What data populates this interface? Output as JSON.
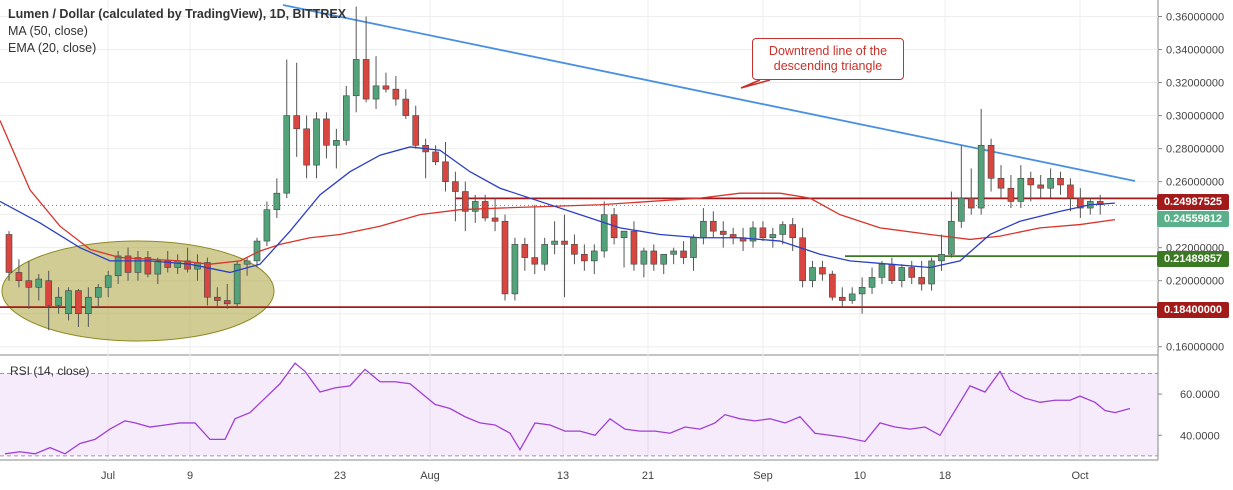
{
  "header": {
    "title": "Lumen / Dollar (calculated by TradingView), 1D, BITTREX",
    "ma_label": "MA (50, close)",
    "ema_label": "EMA (20, close)"
  },
  "rsi_label": "RSI (14, close)",
  "annotation": "Downtrend line of the descending triangle",
  "colors": {
    "up": "#53a37a",
    "down": "#d8463f",
    "ma": "#d9342b",
    "ema": "#2b3fc4",
    "trend": "#4a90e2",
    "support_green": "#3b7a23",
    "support_red": "#a31a1a",
    "rsi": "#a13fd6"
  },
  "price_tags": {
    "resistance": "0.24987525",
    "last": "0.24559812",
    "support_mid": "0.21489857",
    "support_low": "0.18400000"
  },
  "chart_data": {
    "type": "candlestick",
    "y_axis": [
      "0.36000000",
      "0.34000000",
      "0.32000000",
      "0.30000000",
      "0.28000000",
      "0.26000000",
      "0.24000000",
      "0.22000000",
      "0.20000000",
      "0.18000000",
      "0.16000000"
    ],
    "x_axis": [
      "Jul",
      "9",
      "23",
      "Aug",
      "13",
      "21",
      "Sep",
      "10",
      "18",
      "Oct"
    ],
    "rsi_axis": [
      "60.0000",
      "40.0000"
    ],
    "ylim": [
      0.155,
      0.37
    ],
    "rsi_ylim": [
      28,
      78
    ],
    "horizontal_levels": [
      0.24987525,
      0.21489857,
      0.184
    ],
    "candles": [
      [
        0.228,
        0.23,
        0.2,
        0.205
      ],
      [
        0.205,
        0.213,
        0.196,
        0.2
      ],
      [
        0.2,
        0.212,
        0.183,
        0.196
      ],
      [
        0.196,
        0.204,
        0.188,
        0.201
      ],
      [
        0.2,
        0.206,
        0.17,
        0.185
      ],
      [
        0.185,
        0.196,
        0.18,
        0.19
      ],
      [
        0.18,
        0.196,
        0.176,
        0.194
      ],
      [
        0.194,
        0.195,
        0.172,
        0.18
      ],
      [
        0.18,
        0.196,
        0.172,
        0.19
      ],
      [
        0.19,
        0.198,
        0.184,
        0.196
      ],
      [
        0.196,
        0.206,
        0.19,
        0.203
      ],
      [
        0.203,
        0.218,
        0.198,
        0.215
      ],
      [
        0.215,
        0.22,
        0.2,
        0.205
      ],
      [
        0.205,
        0.218,
        0.2,
        0.214
      ],
      [
        0.214,
        0.218,
        0.202,
        0.204
      ],
      [
        0.204,
        0.214,
        0.198,
        0.212
      ],
      [
        0.212,
        0.218,
        0.205,
        0.208
      ],
      [
        0.208,
        0.216,
        0.204,
        0.212
      ],
      [
        0.212,
        0.22,
        0.205,
        0.207
      ],
      [
        0.207,
        0.216,
        0.2,
        0.211
      ],
      [
        0.211,
        0.214,
        0.185,
        0.19
      ],
      [
        0.19,
        0.196,
        0.184,
        0.188
      ],
      [
        0.188,
        0.198,
        0.183,
        0.186
      ],
      [
        0.186,
        0.212,
        0.184,
        0.21
      ],
      [
        0.21,
        0.214,
        0.203,
        0.212
      ],
      [
        0.212,
        0.226,
        0.208,
        0.224
      ],
      [
        0.224,
        0.248,
        0.221,
        0.243
      ],
      [
        0.243,
        0.262,
        0.238,
        0.253
      ],
      [
        0.253,
        0.334,
        0.25,
        0.3
      ],
      [
        0.3,
        0.332,
        0.275,
        0.292
      ],
      [
        0.292,
        0.3,
        0.262,
        0.27
      ],
      [
        0.27,
        0.302,
        0.262,
        0.298
      ],
      [
        0.298,
        0.302,
        0.274,
        0.282
      ],
      [
        0.282,
        0.292,
        0.268,
        0.285
      ],
      [
        0.285,
        0.318,
        0.282,
        0.312
      ],
      [
        0.312,
        0.366,
        0.302,
        0.334
      ],
      [
        0.334,
        0.36,
        0.308,
        0.31
      ],
      [
        0.31,
        0.336,
        0.304,
        0.318
      ],
      [
        0.318,
        0.326,
        0.314,
        0.316
      ],
      [
        0.316,
        0.324,
        0.306,
        0.31
      ],
      [
        0.31,
        0.316,
        0.298,
        0.3
      ],
      [
        0.3,
        0.306,
        0.28,
        0.282
      ],
      [
        0.282,
        0.286,
        0.262,
        0.278
      ],
      [
        0.278,
        0.282,
        0.27,
        0.272
      ],
      [
        0.272,
        0.284,
        0.254,
        0.26
      ],
      [
        0.26,
        0.266,
        0.236,
        0.254
      ],
      [
        0.254,
        0.26,
        0.23,
        0.242
      ],
      [
        0.242,
        0.252,
        0.235,
        0.248
      ],
      [
        0.248,
        0.252,
        0.236,
        0.238
      ],
      [
        0.238,
        0.25,
        0.23,
        0.236
      ],
      [
        0.236,
        0.24,
        0.188,
        0.192
      ],
      [
        0.192,
        0.226,
        0.188,
        0.222
      ],
      [
        0.222,
        0.226,
        0.206,
        0.214
      ],
      [
        0.214,
        0.246,
        0.204,
        0.21
      ],
      [
        0.21,
        0.226,
        0.206,
        0.222
      ],
      [
        0.222,
        0.236,
        0.216,
        0.224
      ],
      [
        0.224,
        0.24,
        0.19,
        0.222
      ],
      [
        0.222,
        0.228,
        0.21,
        0.216
      ],
      [
        0.216,
        0.222,
        0.206,
        0.212
      ],
      [
        0.212,
        0.222,
        0.204,
        0.218
      ],
      [
        0.218,
        0.248,
        0.214,
        0.24
      ],
      [
        0.24,
        0.244,
        0.222,
        0.226
      ],
      [
        0.226,
        0.23,
        0.208,
        0.23
      ],
      [
        0.23,
        0.236,
        0.206,
        0.21
      ],
      [
        0.21,
        0.22,
        0.202,
        0.218
      ],
      [
        0.218,
        0.222,
        0.206,
        0.21
      ],
      [
        0.21,
        0.216,
        0.204,
        0.216
      ],
      [
        0.216,
        0.22,
        0.21,
        0.218
      ],
      [
        0.218,
        0.224,
        0.21,
        0.214
      ],
      [
        0.214,
        0.228,
        0.206,
        0.226
      ],
      [
        0.226,
        0.244,
        0.222,
        0.236
      ],
      [
        0.236,
        0.242,
        0.226,
        0.23
      ],
      [
        0.23,
        0.236,
        0.22,
        0.228
      ],
      [
        0.228,
        0.232,
        0.222,
        0.226
      ],
      [
        0.226,
        0.232,
        0.218,
        0.224
      ],
      [
        0.224,
        0.236,
        0.22,
        0.232
      ],
      [
        0.232,
        0.236,
        0.224,
        0.226
      ],
      [
        0.226,
        0.232,
        0.22,
        0.228
      ],
      [
        0.228,
        0.236,
        0.222,
        0.234
      ],
      [
        0.234,
        0.238,
        0.218,
        0.226
      ],
      [
        0.226,
        0.232,
        0.196,
        0.2
      ],
      [
        0.2,
        0.212,
        0.196,
        0.208
      ],
      [
        0.208,
        0.212,
        0.2,
        0.204
      ],
      [
        0.204,
        0.206,
        0.188,
        0.19
      ],
      [
        0.19,
        0.196,
        0.184,
        0.188
      ],
      [
        0.188,
        0.196,
        0.186,
        0.192
      ],
      [
        0.192,
        0.202,
        0.18,
        0.196
      ],
      [
        0.196,
        0.208,
        0.192,
        0.202
      ],
      [
        0.202,
        0.212,
        0.198,
        0.21
      ],
      [
        0.21,
        0.214,
        0.198,
        0.2
      ],
      [
        0.2,
        0.21,
        0.196,
        0.208
      ],
      [
        0.208,
        0.212,
        0.198,
        0.202
      ],
      [
        0.202,
        0.212,
        0.194,
        0.198
      ],
      [
        0.198,
        0.214,
        0.194,
        0.212
      ],
      [
        0.212,
        0.228,
        0.206,
        0.216
      ],
      [
        0.216,
        0.254,
        0.214,
        0.236
      ],
      [
        0.236,
        0.282,
        0.232,
        0.25
      ],
      [
        0.25,
        0.268,
        0.24,
        0.244
      ],
      [
        0.244,
        0.304,
        0.24,
        0.282
      ],
      [
        0.282,
        0.286,
        0.254,
        0.262
      ],
      [
        0.262,
        0.27,
        0.25,
        0.256
      ],
      [
        0.256,
        0.264,
        0.244,
        0.248
      ],
      [
        0.248,
        0.27,
        0.244,
        0.262
      ],
      [
        0.262,
        0.266,
        0.248,
        0.258
      ],
      [
        0.258,
        0.264,
        0.25,
        0.256
      ],
      [
        0.256,
        0.268,
        0.25,
        0.262
      ],
      [
        0.262,
        0.266,
        0.252,
        0.258
      ],
      [
        0.258,
        0.262,
        0.242,
        0.25
      ],
      [
        0.25,
        0.256,
        0.238,
        0.244
      ],
      [
        0.244,
        0.25,
        0.24,
        0.248
      ],
      [
        0.248,
        0.252,
        0.24,
        0.246
      ]
    ],
    "ma50": [
      [
        0,
        0.297
      ],
      [
        30,
        0.255
      ],
      [
        60,
        0.233
      ],
      [
        90,
        0.219
      ],
      [
        120,
        0.214
      ],
      [
        150,
        0.213
      ],
      [
        180,
        0.212
      ],
      [
        210,
        0.21
      ],
      [
        240,
        0.212
      ],
      [
        260,
        0.218
      ],
      [
        280,
        0.222
      ],
      [
        310,
        0.226
      ],
      [
        340,
        0.228
      ],
      [
        380,
        0.233
      ],
      [
        420,
        0.24
      ],
      [
        460,
        0.243
      ],
      [
        500,
        0.244
      ],
      [
        550,
        0.245
      ],
      [
        600,
        0.246
      ],
      [
        650,
        0.248
      ],
      [
        700,
        0.25
      ],
      [
        740,
        0.253
      ],
      [
        780,
        0.253
      ],
      [
        810,
        0.25
      ],
      [
        840,
        0.24
      ],
      [
        880,
        0.232
      ],
      [
        930,
        0.228
      ],
      [
        970,
        0.225
      ],
      [
        1000,
        0.227
      ],
      [
        1040,
        0.232
      ],
      [
        1080,
        0.234
      ],
      [
        1115,
        0.237
      ]
    ],
    "ema20": [
      [
        0,
        0.248
      ],
      [
        40,
        0.235
      ],
      [
        80,
        0.22
      ],
      [
        110,
        0.212
      ],
      [
        150,
        0.212
      ],
      [
        190,
        0.21
      ],
      [
        230,
        0.205
      ],
      [
        260,
        0.21
      ],
      [
        290,
        0.23
      ],
      [
        320,
        0.252
      ],
      [
        350,
        0.266
      ],
      [
        380,
        0.276
      ],
      [
        410,
        0.281
      ],
      [
        440,
        0.279
      ],
      [
        470,
        0.266
      ],
      [
        500,
        0.256
      ],
      [
        540,
        0.248
      ],
      [
        580,
        0.24
      ],
      [
        620,
        0.232
      ],
      [
        660,
        0.228
      ],
      [
        700,
        0.226
      ],
      [
        740,
        0.226
      ],
      [
        780,
        0.224
      ],
      [
        820,
        0.216
      ],
      [
        850,
        0.212
      ],
      [
        890,
        0.21
      ],
      [
        930,
        0.208
      ],
      [
        960,
        0.212
      ],
      [
        990,
        0.228
      ],
      [
        1020,
        0.236
      ],
      [
        1060,
        0.242
      ],
      [
        1090,
        0.246
      ],
      [
        1115,
        0.247
      ]
    ],
    "rsi": [
      [
        0,
        31
      ],
      [
        15,
        32
      ],
      [
        30,
        31
      ],
      [
        45,
        34
      ],
      [
        60,
        31
      ],
      [
        75,
        36
      ],
      [
        90,
        38
      ],
      [
        105,
        43
      ],
      [
        120,
        47
      ],
      [
        130,
        46
      ],
      [
        145,
        44
      ],
      [
        160,
        45
      ],
      [
        175,
        46
      ],
      [
        190,
        46
      ],
      [
        205,
        38
      ],
      [
        220,
        38
      ],
      [
        230,
        48
      ],
      [
        245,
        51
      ],
      [
        260,
        58
      ],
      [
        275,
        65
      ],
      [
        290,
        75
      ],
      [
        300,
        71
      ],
      [
        315,
        61
      ],
      [
        330,
        63
      ],
      [
        345,
        64
      ],
      [
        360,
        72
      ],
      [
        375,
        66
      ],
      [
        390,
        66
      ],
      [
        405,
        65
      ],
      [
        420,
        59
      ],
      [
        430,
        55
      ],
      [
        445,
        53
      ],
      [
        460,
        49
      ],
      [
        475,
        46
      ],
      [
        490,
        45
      ],
      [
        505,
        41
      ],
      [
        515,
        33
      ],
      [
        530,
        46
      ],
      [
        545,
        45
      ],
      [
        560,
        42
      ],
      [
        575,
        42
      ],
      [
        590,
        40
      ],
      [
        605,
        48
      ],
      [
        620,
        43
      ],
      [
        635,
        42
      ],
      [
        650,
        42
      ],
      [
        665,
        41
      ],
      [
        680,
        44
      ],
      [
        695,
        43
      ],
      [
        710,
        46
      ],
      [
        720,
        50
      ],
      [
        735,
        48
      ],
      [
        750,
        47
      ],
      [
        765,
        48
      ],
      [
        780,
        46
      ],
      [
        795,
        49
      ],
      [
        810,
        41
      ],
      [
        825,
        40
      ],
      [
        840,
        39
      ],
      [
        860,
        37
      ],
      [
        875,
        46
      ],
      [
        890,
        44
      ],
      [
        905,
        43
      ],
      [
        920,
        44
      ],
      [
        935,
        40
      ],
      [
        950,
        52
      ],
      [
        965,
        64
      ],
      [
        980,
        61
      ],
      [
        995,
        71
      ],
      [
        1005,
        62
      ],
      [
        1020,
        58
      ],
      [
        1035,
        56
      ],
      [
        1050,
        57
      ],
      [
        1065,
        57
      ],
      [
        1075,
        59
      ],
      [
        1090,
        56
      ],
      [
        1100,
        52
      ],
      [
        1110,
        51
      ],
      [
        1125,
        53
      ]
    ]
  }
}
